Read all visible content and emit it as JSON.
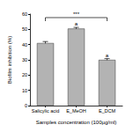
{
  "chart_data": {
    "type": "bar",
    "categories": [
      "Salicylic acid",
      "E_MeOH",
      "E_DCM"
    ],
    "values": [
      41,
      50.5,
      30
    ],
    "errors": [
      1,
      0.8,
      0.8
    ],
    "color": "#b3b3b3",
    "xlabel": "Samples concentration (100µg/ml)",
    "ylabel": "Biofilm inhibition (%)",
    "ylim": [
      0,
      60
    ],
    "yticks": [
      0,
      10,
      20,
      30,
      40,
      50,
      60
    ],
    "annotations": [
      {
        "text": "***",
        "from": "Salicylic acid",
        "to": "E_DCM"
      },
      {
        "text": "a",
        "category": "E_MeOH"
      },
      {
        "text": "a",
        "category": "E_DCM"
      }
    ]
  }
}
